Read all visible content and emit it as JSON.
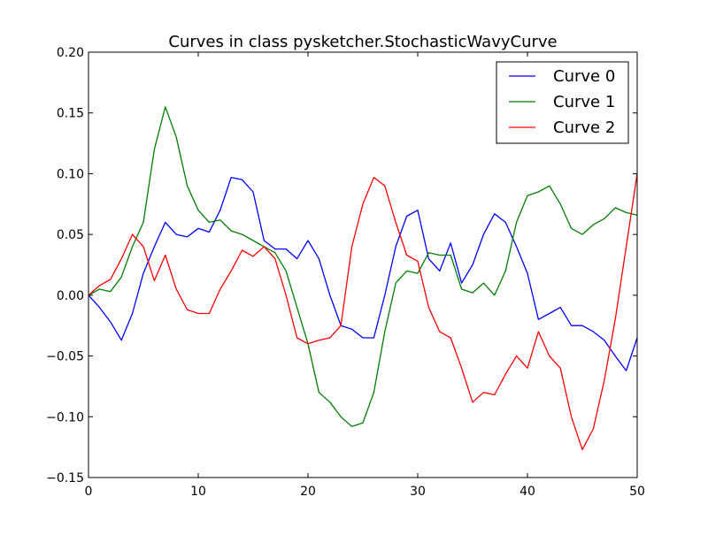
{
  "chart_data": {
    "type": "line",
    "title": "Curves in class pysketcher.StochasticWavyCurve",
    "xlabel": "",
    "ylabel": "",
    "xlim": [
      0,
      50
    ],
    "ylim": [
      -0.15,
      0.2
    ],
    "xticks": [
      "0",
      "10",
      "20",
      "30",
      "40",
      "50"
    ],
    "yticks": [
      "−0.15",
      "−0.10",
      "−0.05",
      "0.00",
      "0.05",
      "0.10",
      "0.15",
      "0.20"
    ],
    "grid": false,
    "legend_placement": "top-right",
    "x": [
      0,
      1,
      2,
      3,
      4,
      5,
      6,
      7,
      8,
      9,
      10,
      11,
      12,
      13,
      14,
      15,
      16,
      17,
      18,
      19,
      20,
      21,
      22,
      23,
      24,
      25,
      26,
      27,
      28,
      29,
      30,
      31,
      32,
      33,
      34,
      35,
      36,
      37,
      38,
      39,
      40,
      41,
      42,
      43,
      44,
      45,
      46,
      47,
      48,
      49,
      50
    ],
    "series": [
      {
        "name": "Curve 0",
        "color": "#0000ff",
        "values": [
          0,
          -0.01,
          -0.022,
          -0.037,
          -0.015,
          0.018,
          0.04,
          0.06,
          0.05,
          0.048,
          0.055,
          0.052,
          0.07,
          0.097,
          0.095,
          0.085,
          0.045,
          0.038,
          0.038,
          0.03,
          0.045,
          0.03,
          0.0,
          -0.025,
          -0.028,
          -0.035,
          -0.035,
          0.0,
          0.04,
          0.065,
          0.07,
          0.03,
          0.02,
          0.043,
          0.01,
          0.025,
          0.05,
          0.067,
          0.06,
          0.04,
          0.018,
          -0.02,
          -0.015,
          -0.01,
          -0.025,
          -0.025,
          -0.03,
          -0.037,
          -0.05,
          -0.062,
          -0.035
        ]
      },
      {
        "name": "Curve 1",
        "color": "#008000",
        "values": [
          0,
          0.005,
          0.003,
          0.015,
          0.04,
          0.06,
          0.12,
          0.155,
          0.13,
          0.09,
          0.07,
          0.06,
          0.062,
          0.053,
          0.05,
          0.045,
          0.04,
          0.035,
          0.02,
          -0.01,
          -0.04,
          -0.08,
          -0.088,
          -0.1,
          -0.108,
          -0.105,
          -0.08,
          -0.03,
          0.01,
          0.02,
          0.018,
          0.035,
          0.033,
          0.033,
          0.005,
          0.002,
          0.01,
          0.0,
          0.02,
          0.06,
          0.082,
          0.085,
          0.09,
          0.075,
          0.055,
          0.05,
          0.058,
          0.063,
          0.072,
          0.068,
          0.066
        ]
      },
      {
        "name": "Curve 2",
        "color": "#ff0000",
        "values": [
          0,
          0.008,
          0.013,
          0.03,
          0.05,
          0.04,
          0.012,
          0.033,
          0.005,
          -0.012,
          -0.015,
          -0.015,
          0.005,
          0.02,
          0.037,
          0.032,
          0.04,
          0.03,
          0.0,
          -0.035,
          -0.04,
          -0.037,
          -0.035,
          -0.025,
          0.04,
          0.075,
          0.097,
          0.09,
          0.06,
          0.033,
          0.028,
          -0.01,
          -0.03,
          -0.035,
          -0.06,
          -0.088,
          -0.08,
          -0.082,
          -0.065,
          -0.05,
          -0.06,
          -0.03,
          -0.05,
          -0.06,
          -0.1,
          -0.127,
          -0.11,
          -0.07,
          -0.02,
          0.04,
          0.1
        ]
      }
    ]
  }
}
